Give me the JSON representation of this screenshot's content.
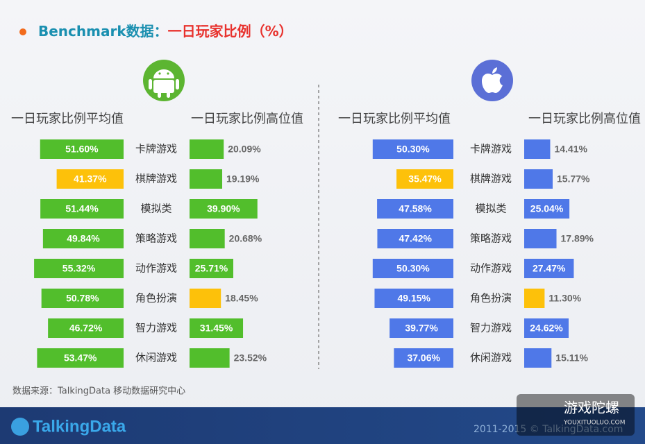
{
  "header": {
    "title_prefix": "Benchmark数据：",
    "title": "一日玩家比例（%）"
  },
  "chart_data": [
    {
      "type": "bar",
      "categories": [
        "卡牌游戏",
        "棋牌游戏",
        "模拟类",
        "策略游戏",
        "动作游戏",
        "角色扮演",
        "智力游戏",
        "休闲游戏"
      ],
      "series": [
        {
          "name": "一日玩家比例平均值",
          "color": "#52be2c",
          "colors": [
            "#52be2c",
            "#fdc10a",
            "#52be2c",
            "#52be2c",
            "#52be2c",
            "#52be2c",
            "#52be2c",
            "#52be2c"
          ],
          "values": [
            51.6,
            41.37,
            51.44,
            49.84,
            55.32,
            50.78,
            46.72,
            53.47
          ],
          "value_labels": [
            "51.60%",
            "41.37%",
            "51.44%",
            "49.84%",
            "55.32%",
            "50.78%",
            "46.72%",
            "53.47%"
          ]
        },
        {
          "name": "一日玩家比例高位值",
          "color": "#52be2c",
          "colors": [
            "#52be2c",
            "#52be2c",
            "#52be2c",
            "#52be2c",
            "#52be2c",
            "#fdc10a",
            "#52be2c",
            "#52be2c"
          ],
          "values": [
            20.09,
            19.19,
            39.9,
            20.68,
            25.71,
            18.45,
            31.45,
            23.52
          ],
          "value_labels": [
            "20.09%",
            "19.19%",
            "39.90%",
            "20.68%",
            "25.71%",
            "18.45%",
            "31.45%",
            "23.52%"
          ]
        }
      ]
    },
    {
      "type": "bar",
      "categories": [
        "卡牌游戏",
        "棋牌游戏",
        "模拟类",
        "策略游戏",
        "动作游戏",
        "角色扮演",
        "智力游戏",
        "休闲游戏"
      ],
      "series": [
        {
          "name": "一日玩家比例平均值",
          "color": "#4f78e8",
          "colors": [
            "#4f78e8",
            "#fdc10a",
            "#4f78e8",
            "#4f78e8",
            "#4f78e8",
            "#4f78e8",
            "#4f78e8",
            "#4f78e8"
          ],
          "values": [
            50.3,
            35.47,
            47.58,
            47.42,
            50.3,
            49.15,
            39.77,
            37.06
          ],
          "value_labels": [
            "50.30%",
            "35.47%",
            "47.58%",
            "47.42%",
            "50.30%",
            "49.15%",
            "39.77%",
            "37.06%"
          ]
        },
        {
          "name": "一日玩家比例高位值",
          "color": "#4f78e8",
          "colors": [
            "#4f78e8",
            "#4f78e8",
            "#4f78e8",
            "#4f78e8",
            "#4f78e8",
            "#fdc10a",
            "#4f78e8",
            "#4f78e8"
          ],
          "values": [
            14.41,
            15.77,
            25.04,
            17.89,
            27.47,
            11.3,
            24.62,
            15.11
          ],
          "value_labels": [
            "14.41%",
            "15.77%",
            "25.04%",
            "17.89%",
            "27.47%",
            "11.30%",
            "24.62%",
            "15.11%"
          ]
        }
      ]
    }
  ],
  "footer": {
    "source": "数据来源：TalkingData 移动数据研究中心",
    "logo": "TalkingData",
    "copyright": "2011-2015 © TalkingData.com",
    "watermark": "游戏陀螺",
    "watermark_url": "YOUXITUOLUO.COM"
  }
}
